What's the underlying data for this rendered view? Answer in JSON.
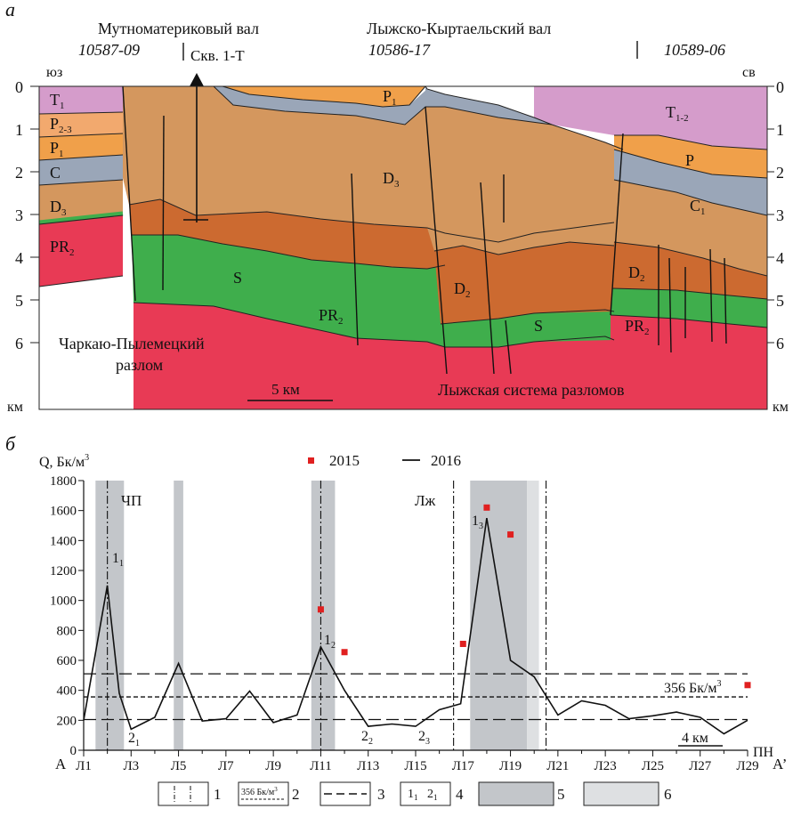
{
  "panel_a": {
    "label": "а",
    "ridge_left": "Мутноматериковый вал",
    "ridge_right": "Лыжско-Кыртаельский вал",
    "profile_left": "10587-09",
    "profile_mid": "10586-17",
    "profile_right": "10589-06",
    "well": "Скв. 1-Т",
    "dir_left": "юз",
    "dir_right": "св",
    "depth_ticks": [
      "0",
      "1",
      "2",
      "3",
      "4",
      "5",
      "6"
    ],
    "unit": "км",
    "fault_left_1": "Чаркаю-Пылемецкий",
    "fault_left_2": "разлом",
    "fault_right": "Лыжская система разломов",
    "scale": "5 км",
    "colors": {
      "T": "#d59ccb",
      "P23": "#f2a96e",
      "P": "#f0a04a",
      "C": "#9aa6b8",
      "D3": "#d4975e",
      "D2": "#cc6a30",
      "S": "#3fae4c",
      "PR2": "#e83a55"
    },
    "units": [
      {
        "id": "T1-left",
        "main": "T",
        "sub": "1"
      },
      {
        "id": "P23-left",
        "main": "P",
        "sub": "2-3"
      },
      {
        "id": "P1-left",
        "main": "P",
        "sub": "1"
      },
      {
        "id": "C-left",
        "main": "C",
        "sub": ""
      },
      {
        "id": "D3-left",
        "main": "D",
        "sub": "3"
      },
      {
        "id": "PR2-left",
        "main": "PR",
        "sub": "2"
      },
      {
        "id": "P1-top",
        "main": "P",
        "sub": "1"
      },
      {
        "id": "D3-center",
        "main": "D",
        "sub": "3"
      },
      {
        "id": "S-left",
        "main": "S",
        "sub": ""
      },
      {
        "id": "PR2-center",
        "main": "PR",
        "sub": "2"
      },
      {
        "id": "D2-center",
        "main": "D",
        "sub": "2"
      },
      {
        "id": "S-center",
        "main": "S",
        "sub": ""
      },
      {
        "id": "T12-right",
        "main": "T",
        "sub": "1-2"
      },
      {
        "id": "P-right",
        "main": "P",
        "sub": ""
      },
      {
        "id": "C1-right",
        "main": "C",
        "sub": "1"
      },
      {
        "id": "D2-right",
        "main": "D",
        "sub": "2"
      },
      {
        "id": "PR2-right",
        "main": "PR",
        "sub": "2"
      }
    ]
  },
  "panel_b": {
    "label": "б",
    "ylabel": "Q, Бк/м",
    "ylabel_sup": "3",
    "legend_2015": "2015",
    "legend_2016": "2016",
    "zone_cp": "ЧП",
    "zone_lzh": "Лж",
    "threshold_label": "356 Бк/м",
    "threshold_sup": "3",
    "scale": "4 км",
    "pn": "ПН",
    "start": "А",
    "end": "А’",
    "peaks": [
      {
        "id": "peak-1-1",
        "main": "1",
        "sub": "1"
      },
      {
        "id": "peak-1-2",
        "main": "1",
        "sub": "2"
      },
      {
        "id": "peak-1-3",
        "main": "1",
        "sub": "3"
      },
      {
        "id": "min-2-1",
        "main": "2",
        "sub": "1"
      },
      {
        "id": "min-2-2",
        "main": "2",
        "sub": "2"
      },
      {
        "id": "min-2-3",
        "main": "2",
        "sub": "3"
      }
    ],
    "legend_items": [
      "1",
      "2",
      "3",
      "4",
      "5",
      "6"
    ],
    "legend_threshold_text": "356 Бк/м",
    "legend_threshold_sup": "3",
    "legend_minmax": [
      {
        "main": "1",
        "sub": "1"
      },
      {
        "main": "2",
        "sub": "1"
      }
    ],
    "colors": {
      "zone_dark": "#c3c6ca",
      "zone_light": "#dee0e2",
      "marker_2015": "#e02020",
      "line_2016": "#111111"
    }
  },
  "chart_data": {
    "type": "line",
    "xlabel": "",
    "ylabel": "Q, Бк/м3",
    "ylim": [
      0,
      1800
    ],
    "yticks": [
      0,
      200,
      400,
      600,
      800,
      1000,
      1200,
      1400,
      1600,
      1800
    ],
    "x_tick_labels": [
      "Л1",
      "Л3",
      "Л5",
      "Л7",
      "Л9",
      "Л11",
      "Л13",
      "Л15",
      "Л17",
      "Л19",
      "Л21",
      "Л23",
      "Л25",
      "Л27",
      "Л29"
    ],
    "reference_lines": [
      510,
      356,
      205
    ],
    "series": [
      {
        "name": "2016",
        "type": "line",
        "points": [
          [
            1,
            200
          ],
          [
            2,
            1100
          ],
          [
            2.5,
            380
          ],
          [
            3,
            140
          ],
          [
            4,
            220
          ],
          [
            5,
            580
          ],
          [
            6,
            195
          ],
          [
            7,
            210
          ],
          [
            8,
            395
          ],
          [
            9,
            185
          ],
          [
            10,
            235
          ],
          [
            11,
            690
          ],
          [
            12,
            400
          ],
          [
            13,
            160
          ],
          [
            14,
            175
          ],
          [
            15,
            160
          ],
          [
            16,
            270
          ],
          [
            16.9,
            310
          ],
          [
            18,
            1550
          ],
          [
            19,
            600
          ],
          [
            20,
            490
          ],
          [
            21,
            235
          ],
          [
            22,
            330
          ],
          [
            23,
            300
          ],
          [
            24,
            210
          ],
          [
            25,
            230
          ],
          [
            26,
            255
          ],
          [
            27,
            220
          ],
          [
            28,
            110
          ],
          [
            29,
            200
          ]
        ]
      },
      {
        "name": "2015",
        "type": "scatter",
        "points": [
          [
            11,
            940
          ],
          [
            12,
            655
          ],
          [
            17,
            710
          ],
          [
            18,
            1620
          ],
          [
            19,
            1440
          ],
          [
            29,
            435
          ]
        ]
      }
    ]
  }
}
